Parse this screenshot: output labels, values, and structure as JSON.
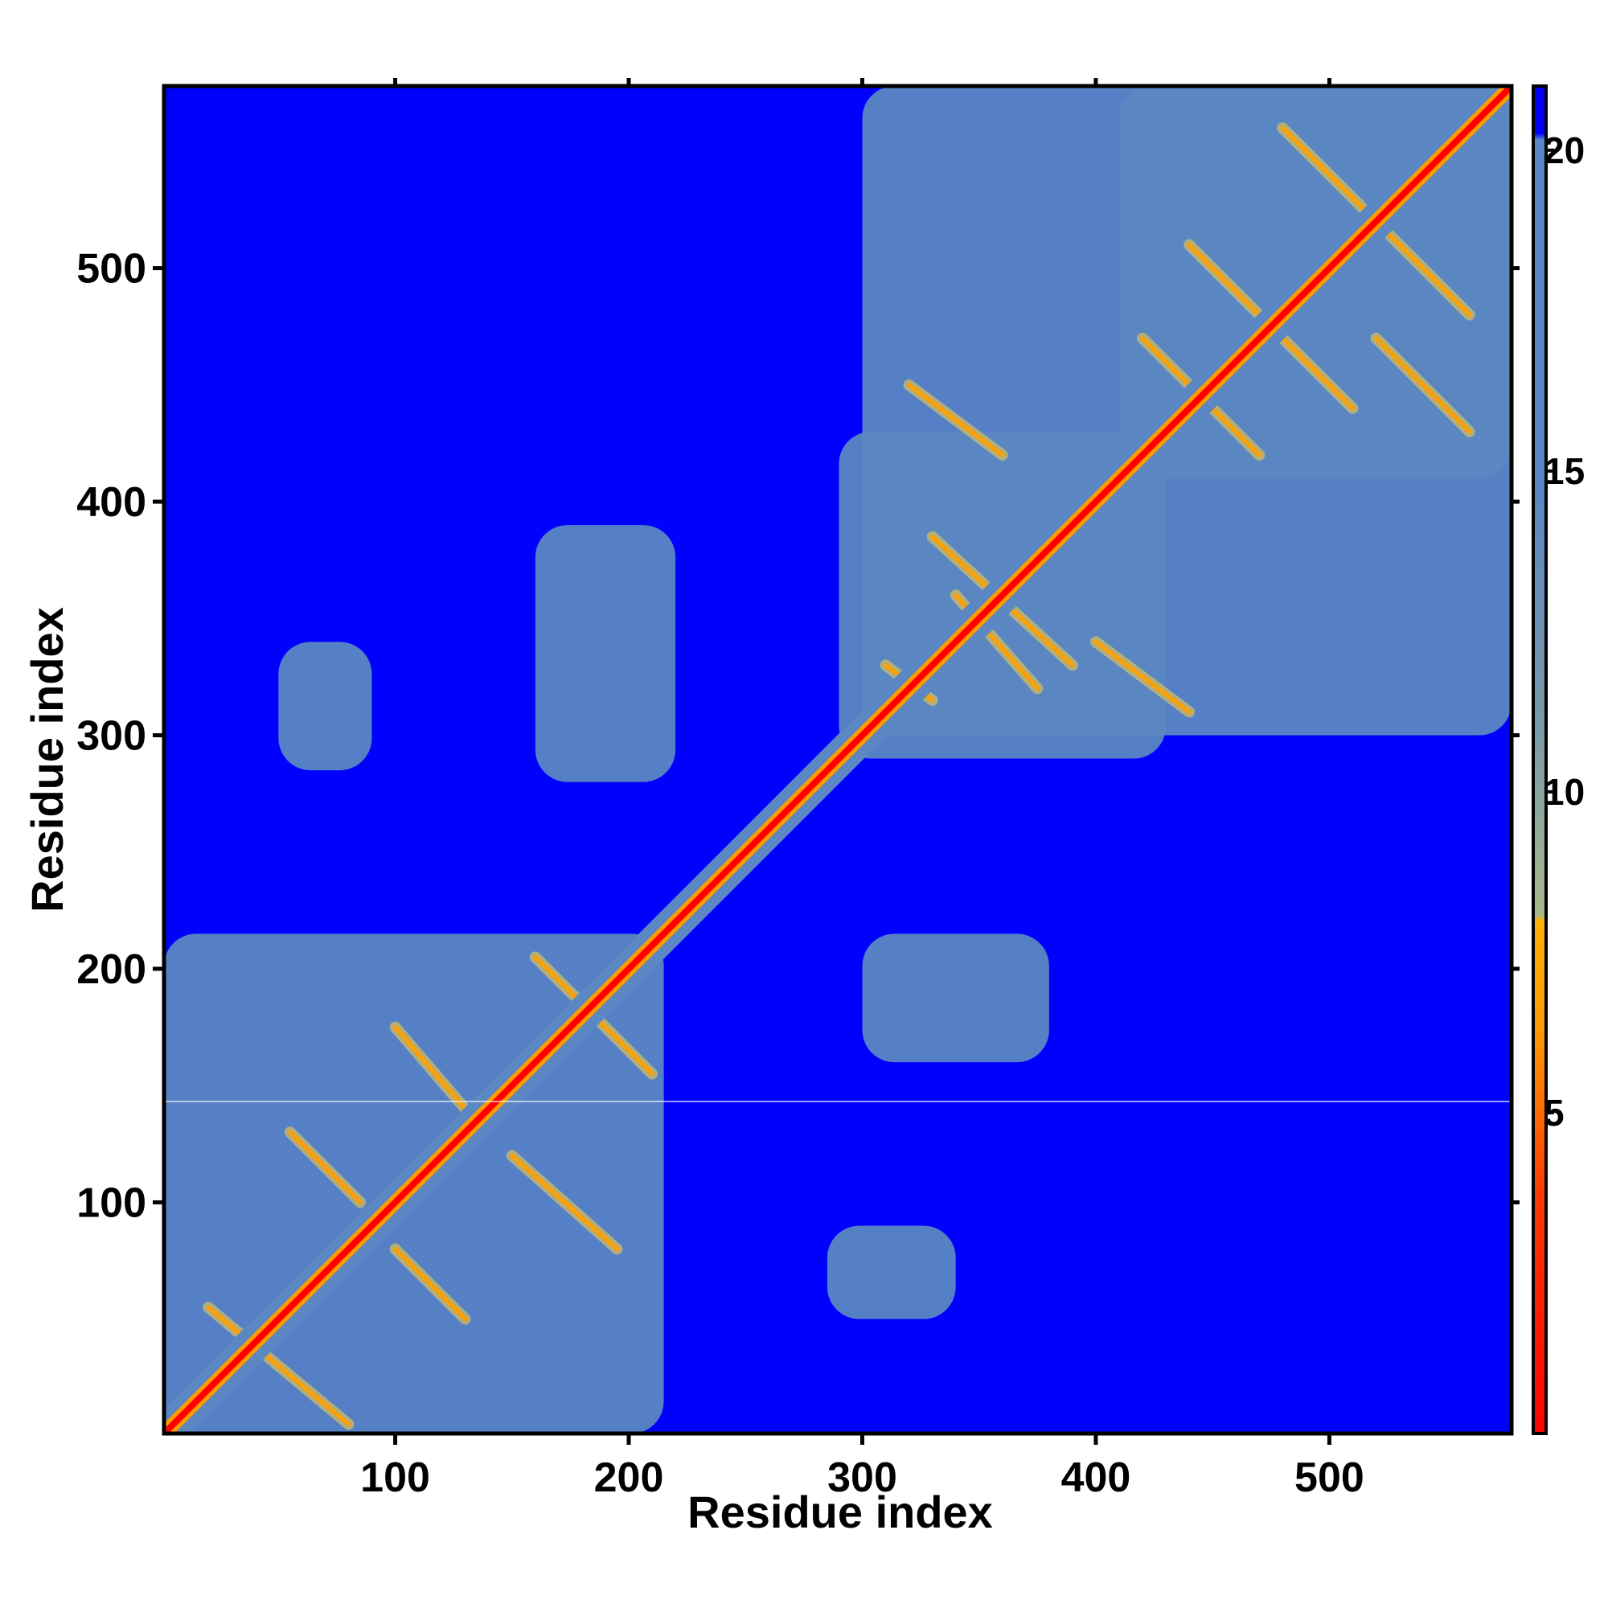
{
  "chart_data": {
    "type": "heatmap",
    "title": "",
    "xlabel": "Residue index",
    "ylabel": "Residue index",
    "xlim": [
      1,
      578
    ],
    "ylim": [
      1,
      578
    ],
    "x_ticks": [
      100,
      200,
      300,
      400,
      500
    ],
    "y_ticks": [
      100,
      200,
      300,
      400,
      500
    ],
    "x_tick_labels": [
      "100",
      "200",
      "300",
      "400",
      "500"
    ],
    "y_tick_labels": [
      "100",
      "200",
      "300",
      "400",
      "500"
    ],
    "grid": false,
    "colorbar": {
      "position": "right",
      "range": [
        0,
        21
      ],
      "ticks": [
        5,
        10,
        15,
        20
      ],
      "tick_labels": [
        "5",
        "10",
        "15",
        "20"
      ],
      "colors": {
        "low": "#ff0000",
        "mid_low": "#ff8c00",
        "mid": "#8fa882",
        "high": "#5b87c2",
        "max": "#0000ff"
      }
    },
    "matrix_description": "symmetric residue-residue distance map",
    "diagonal_value": 1,
    "background_value": 21,
    "blocks": [
      {
        "range_x": [
          1,
          215
        ],
        "range_y": [
          1,
          215
        ],
        "value": 18
      },
      {
        "range_x": [
          300,
          578
        ],
        "range_y": [
          300,
          578
        ],
        "value": 18
      },
      {
        "range_x": [
          410,
          578
        ],
        "range_y": [
          410,
          578
        ],
        "value": 17
      },
      {
        "range_x": [
          290,
          430
        ],
        "range_y": [
          290,
          430
        ],
        "value": 17
      },
      {
        "range_x": [
          300,
          380
        ],
        "range_y": [
          160,
          215
        ],
        "value": 18
      },
      {
        "range_x": [
          285,
          340
        ],
        "range_y": [
          50,
          90
        ],
        "value": 18
      },
      {
        "range_x": [
          160,
          220
        ],
        "range_y": [
          280,
          390
        ],
        "value": 18
      },
      {
        "range_x": [
          50,
          90
        ],
        "range_y": [
          285,
          340
        ],
        "value": 18
      }
    ],
    "contact_lines": [
      {
        "from": [
          20,
          55
        ],
        "to": [
          80,
          5
        ],
        "value": 6
      },
      {
        "from": [
          55,
          130
        ],
        "to": [
          85,
          100
        ],
        "value": 6
      },
      {
        "from": [
          100,
          80
        ],
        "to": [
          130,
          50
        ],
        "value": 6
      },
      {
        "from": [
          100,
          175
        ],
        "to": [
          130,
          140
        ],
        "value": 6
      },
      {
        "from": [
          160,
          205
        ],
        "to": [
          210,
          155
        ],
        "value": 6
      },
      {
        "from": [
          150,
          120
        ],
        "to": [
          195,
          80
        ],
        "value": 6
      },
      {
        "from": [
          310,
          330
        ],
        "to": [
          330,
          315
        ],
        "value": 6
      },
      {
        "from": [
          330,
          385
        ],
        "to": [
          390,
          330
        ],
        "value": 6
      },
      {
        "from": [
          340,
          360
        ],
        "to": [
          375,
          320
        ],
        "value": 6
      },
      {
        "from": [
          400,
          340
        ],
        "to": [
          440,
          310
        ],
        "value": 6
      },
      {
        "from": [
          420,
          470
        ],
        "to": [
          470,
          420
        ],
        "value": 6
      },
      {
        "from": [
          440,
          510
        ],
        "to": [
          510,
          440
        ],
        "value": 6
      },
      {
        "from": [
          480,
          560
        ],
        "to": [
          560,
          480
        ],
        "value": 6
      },
      {
        "from": [
          320,
          450
        ],
        "to": [
          360,
          420
        ],
        "value": 6
      },
      {
        "from": [
          520,
          470
        ],
        "to": [
          560,
          430
        ],
        "value": 6
      }
    ]
  }
}
